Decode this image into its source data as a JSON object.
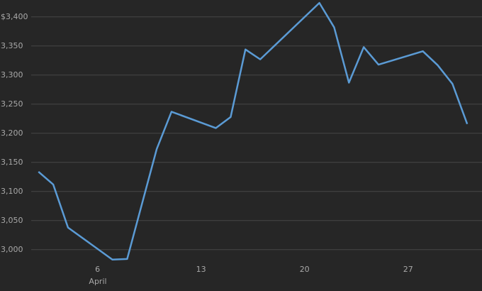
{
  "chart_data": {
    "type": "line",
    "x": [
      2,
      3,
      4,
      7,
      8,
      10,
      11,
      14,
      15,
      16,
      17,
      21,
      22,
      23,
      24,
      25,
      28,
      29,
      30,
      31
    ],
    "series": [
      {
        "color": "#5b9bd5",
        "values": [
          3134,
          3112,
          3038,
          2983,
          2984,
          3173,
          3237,
          3209,
          3228,
          3344,
          3327,
          3424,
          3382,
          3287,
          3348,
          3318,
          3341,
          3317,
          3285,
          3216
        ]
      }
    ],
    "xlim": [
      -0.6,
      32
    ],
    "xticks": [
      6,
      13,
      20,
      27
    ],
    "month_label": "April",
    "ylim": [
      2929,
      3429
    ],
    "yticks": [
      {
        "value": 3000,
        "label": "3,000"
      },
      {
        "value": 3050,
        "label": "3,050"
      },
      {
        "value": 3100,
        "label": "3,100"
      },
      {
        "value": 3150,
        "label": "3,150"
      },
      {
        "value": 3200,
        "label": "3,200"
      },
      {
        "value": 3250,
        "label": "3,250"
      },
      {
        "value": 3300,
        "label": "3,300"
      },
      {
        "value": 3350,
        "label": "3,350"
      },
      {
        "value": 3400,
        "label": "$3,400"
      }
    ],
    "grid": true
  }
}
